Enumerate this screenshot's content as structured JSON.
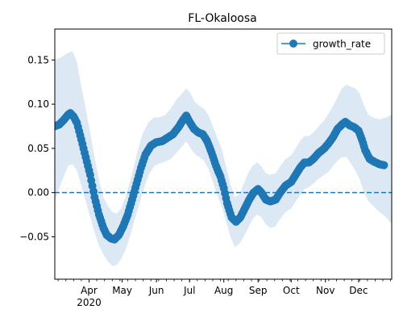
{
  "chart_data": {
    "type": "line",
    "title": "FL-Okaloosa",
    "xlabel": "",
    "ylabel": "",
    "x_range": [
      "2020-03-01",
      "2020-12-31"
    ],
    "ylim": [
      -0.098,
      0.185
    ],
    "yticks": [
      -0.05,
      0.0,
      0.05,
      0.1,
      0.15
    ],
    "ytick_labels": [
      "−0.05",
      "0.00",
      "0.05",
      "0.10",
      "0.15"
    ],
    "xticks": [
      {
        "date": "2020-04-01",
        "label": "Apr"
      },
      {
        "date": "2020-05-01",
        "label": "May"
      },
      {
        "date": "2020-06-01",
        "label": "Jun"
      },
      {
        "date": "2020-07-01",
        "label": "Jul"
      },
      {
        "date": "2020-08-01",
        "label": "Aug"
      },
      {
        "date": "2020-09-01",
        "label": "Sep"
      },
      {
        "date": "2020-10-01",
        "label": "Oct"
      },
      {
        "date": "2020-11-01",
        "label": "Nov"
      },
      {
        "date": "2020-12-01",
        "label": "Dec"
      }
    ],
    "year_label": "2020",
    "reference_line": {
      "y": 0.0,
      "style": "dashed"
    },
    "legend": {
      "position": "top-right",
      "entries": [
        "growth_rate"
      ]
    },
    "grid": false,
    "colors": {
      "line": "#1f77b4",
      "band": "#dce9f5"
    },
    "series": [
      {
        "name": "growth_rate",
        "points": [
          [
            "2020-03-01",
            0.075
          ],
          [
            "2020-03-05",
            0.077
          ],
          [
            "2020-03-09",
            0.082
          ],
          [
            "2020-03-13",
            0.088
          ],
          [
            "2020-03-15",
            0.09
          ],
          [
            "2020-03-18",
            0.086
          ],
          [
            "2020-03-21",
            0.079
          ],
          [
            "2020-03-25",
            0.06
          ],
          [
            "2020-03-29",
            0.04
          ],
          [
            "2020-04-02",
            0.02
          ],
          [
            "2020-04-06",
            -0.005
          ],
          [
            "2020-04-10",
            -0.025
          ],
          [
            "2020-04-14",
            -0.04
          ],
          [
            "2020-04-17",
            -0.048
          ],
          [
            "2020-04-21",
            -0.052
          ],
          [
            "2020-04-24",
            -0.053
          ],
          [
            "2020-04-28",
            -0.048
          ],
          [
            "2020-05-02",
            -0.038
          ],
          [
            "2020-05-06",
            -0.025
          ],
          [
            "2020-05-10",
            -0.008
          ],
          [
            "2020-05-14",
            0.01
          ],
          [
            "2020-05-18",
            0.028
          ],
          [
            "2020-05-22",
            0.043
          ],
          [
            "2020-05-27",
            0.053
          ],
          [
            "2020-06-01",
            0.057
          ],
          [
            "2020-06-06",
            0.058
          ],
          [
            "2020-06-11",
            0.062
          ],
          [
            "2020-06-16",
            0.066
          ],
          [
            "2020-06-21",
            0.074
          ],
          [
            "2020-06-25",
            0.082
          ],
          [
            "2020-06-28",
            0.087
          ],
          [
            "2020-07-01",
            0.08
          ],
          [
            "2020-07-05",
            0.072
          ],
          [
            "2020-07-09",
            0.068
          ],
          [
            "2020-07-13",
            0.066
          ],
          [
            "2020-07-17",
            0.058
          ],
          [
            "2020-07-21",
            0.045
          ],
          [
            "2020-07-25",
            0.03
          ],
          [
            "2020-07-29",
            0.018
          ],
          [
            "2020-08-01",
            0.005
          ],
          [
            "2020-08-04",
            -0.012
          ],
          [
            "2020-08-08",
            -0.028
          ],
          [
            "2020-08-12",
            -0.033
          ],
          [
            "2020-08-16",
            -0.028
          ],
          [
            "2020-08-20",
            -0.018
          ],
          [
            "2020-08-24",
            -0.008
          ],
          [
            "2020-08-28",
            0.0
          ],
          [
            "2020-09-01",
            0.004
          ],
          [
            "2020-09-04",
            0.0
          ],
          [
            "2020-09-08",
            -0.008
          ],
          [
            "2020-09-12",
            -0.01
          ],
          [
            "2020-09-17",
            -0.008
          ],
          [
            "2020-09-21",
            0.0
          ],
          [
            "2020-09-26",
            0.008
          ],
          [
            "2020-10-01",
            0.012
          ],
          [
            "2020-10-05",
            0.02
          ],
          [
            "2020-10-09",
            0.028
          ],
          [
            "2020-10-13",
            0.034
          ],
          [
            "2020-10-17",
            0.034
          ],
          [
            "2020-10-21",
            0.038
          ],
          [
            "2020-10-26",
            0.045
          ],
          [
            "2020-10-31",
            0.05
          ],
          [
            "2020-11-04",
            0.056
          ],
          [
            "2020-11-08",
            0.063
          ],
          [
            "2020-11-12",
            0.072
          ],
          [
            "2020-11-16",
            0.077
          ],
          [
            "2020-11-19",
            0.08
          ],
          [
            "2020-11-23",
            0.076
          ],
          [
            "2020-11-27",
            0.074
          ],
          [
            "2020-12-01",
            0.07
          ],
          [
            "2020-12-04",
            0.06
          ],
          [
            "2020-12-07",
            0.048
          ],
          [
            "2020-12-11",
            0.038
          ],
          [
            "2020-12-15",
            0.035
          ],
          [
            "2020-12-20",
            0.032
          ],
          [
            "2020-12-24",
            0.031
          ]
        ],
        "band_lower": [
          [
            "2020-03-01",
            -0.01
          ],
          [
            "2020-03-05",
            0.005
          ],
          [
            "2020-03-09",
            0.018
          ],
          [
            "2020-03-13",
            0.03
          ],
          [
            "2020-03-17",
            0.032
          ],
          [
            "2020-03-21",
            0.025
          ],
          [
            "2020-03-25",
            0.008
          ],
          [
            "2020-03-29",
            -0.01
          ],
          [
            "2020-04-02",
            -0.028
          ],
          [
            "2020-04-06",
            -0.045
          ],
          [
            "2020-04-10",
            -0.06
          ],
          [
            "2020-04-14",
            -0.07
          ],
          [
            "2020-04-18",
            -0.078
          ],
          [
            "2020-04-22",
            -0.083
          ],
          [
            "2020-04-26",
            -0.082
          ],
          [
            "2020-04-30",
            -0.075
          ],
          [
            "2020-05-04",
            -0.065
          ],
          [
            "2020-05-08",
            -0.05
          ],
          [
            "2020-05-12",
            -0.032
          ],
          [
            "2020-05-16",
            -0.015
          ],
          [
            "2020-05-20",
            0.002
          ],
          [
            "2020-05-25",
            0.02
          ],
          [
            "2020-05-30",
            0.03
          ],
          [
            "2020-06-04",
            0.033
          ],
          [
            "2020-06-09",
            0.035
          ],
          [
            "2020-06-14",
            0.038
          ],
          [
            "2020-06-19",
            0.045
          ],
          [
            "2020-06-24",
            0.052
          ],
          [
            "2020-06-28",
            0.058
          ],
          [
            "2020-07-02",
            0.05
          ],
          [
            "2020-07-06",
            0.043
          ],
          [
            "2020-07-10",
            0.04
          ],
          [
            "2020-07-14",
            0.036
          ],
          [
            "2020-07-18",
            0.027
          ],
          [
            "2020-07-22",
            0.012
          ],
          [
            "2020-07-26",
            -0.003
          ],
          [
            "2020-07-30",
            -0.015
          ],
          [
            "2020-08-03",
            -0.032
          ],
          [
            "2020-08-07",
            -0.05
          ],
          [
            "2020-08-11",
            -0.062
          ],
          [
            "2020-08-15",
            -0.058
          ],
          [
            "2020-08-19",
            -0.05
          ],
          [
            "2020-08-23",
            -0.04
          ],
          [
            "2020-08-27",
            -0.03
          ],
          [
            "2020-08-31",
            -0.025
          ],
          [
            "2020-09-04",
            -0.028
          ],
          [
            "2020-09-08",
            -0.036
          ],
          [
            "2020-09-12",
            -0.04
          ],
          [
            "2020-09-17",
            -0.038
          ],
          [
            "2020-09-21",
            -0.03
          ],
          [
            "2020-09-26",
            -0.022
          ],
          [
            "2020-10-01",
            -0.018
          ],
          [
            "2020-10-05",
            -0.01
          ],
          [
            "2020-10-09",
            -0.003
          ],
          [
            "2020-10-13",
            0.004
          ],
          [
            "2020-10-17",
            0.006
          ],
          [
            "2020-10-21",
            0.01
          ],
          [
            "2020-10-26",
            0.016
          ],
          [
            "2020-10-31",
            0.02
          ],
          [
            "2020-11-04",
            0.024
          ],
          [
            "2020-11-08",
            0.03
          ],
          [
            "2020-11-12",
            0.036
          ],
          [
            "2020-11-16",
            0.04
          ],
          [
            "2020-11-20",
            0.04
          ],
          [
            "2020-11-24",
            0.033
          ],
          [
            "2020-11-28",
            0.025
          ],
          [
            "2020-12-02",
            0.015
          ],
          [
            "2020-12-06",
            0.0
          ],
          [
            "2020-12-10",
            -0.01
          ],
          [
            "2020-12-14",
            -0.015
          ],
          [
            "2020-12-20",
            -0.022
          ],
          [
            "2020-12-26",
            -0.028
          ],
          [
            "2020-12-31",
            -0.036
          ]
        ],
        "band_upper": [
          [
            "2020-03-01",
            0.15
          ],
          [
            "2020-03-05",
            0.152
          ],
          [
            "2020-03-09",
            0.155
          ],
          [
            "2020-03-13",
            0.158
          ],
          [
            "2020-03-17",
            0.16
          ],
          [
            "2020-03-21",
            0.148
          ],
          [
            "2020-03-25",
            0.12
          ],
          [
            "2020-03-29",
            0.095
          ],
          [
            "2020-04-02",
            0.068
          ],
          [
            "2020-04-06",
            0.04
          ],
          [
            "2020-04-10",
            0.015
          ],
          [
            "2020-04-14",
            -0.005
          ],
          [
            "2020-04-18",
            -0.015
          ],
          [
            "2020-04-22",
            -0.022
          ],
          [
            "2020-04-26",
            -0.024
          ],
          [
            "2020-04-30",
            -0.018
          ],
          [
            "2020-05-04",
            -0.005
          ],
          [
            "2020-05-08",
            0.012
          ],
          [
            "2020-05-12",
            0.032
          ],
          [
            "2020-05-16",
            0.052
          ],
          [
            "2020-05-20",
            0.068
          ],
          [
            "2020-05-25",
            0.08
          ],
          [
            "2020-05-30",
            0.085
          ],
          [
            "2020-06-04",
            0.085
          ],
          [
            "2020-06-09",
            0.088
          ],
          [
            "2020-06-14",
            0.095
          ],
          [
            "2020-06-19",
            0.105
          ],
          [
            "2020-06-24",
            0.112
          ],
          [
            "2020-06-28",
            0.118
          ],
          [
            "2020-07-02",
            0.112
          ],
          [
            "2020-07-06",
            0.102
          ],
          [
            "2020-07-10",
            0.098
          ],
          [
            "2020-07-14",
            0.095
          ],
          [
            "2020-07-18",
            0.088
          ],
          [
            "2020-07-22",
            0.075
          ],
          [
            "2020-07-26",
            0.062
          ],
          [
            "2020-07-30",
            0.05
          ],
          [
            "2020-08-03",
            0.03
          ],
          [
            "2020-08-07",
            0.01
          ],
          [
            "2020-08-11",
            -0.005
          ],
          [
            "2020-08-15",
            -0.002
          ],
          [
            "2020-08-19",
            0.01
          ],
          [
            "2020-08-23",
            0.022
          ],
          [
            "2020-08-27",
            0.03
          ],
          [
            "2020-08-31",
            0.034
          ],
          [
            "2020-09-04",
            0.03
          ],
          [
            "2020-09-08",
            0.022
          ],
          [
            "2020-09-12",
            0.02
          ],
          [
            "2020-09-17",
            0.022
          ],
          [
            "2020-09-21",
            0.03
          ],
          [
            "2020-09-26",
            0.038
          ],
          [
            "2020-10-01",
            0.042
          ],
          [
            "2020-10-05",
            0.05
          ],
          [
            "2020-10-09",
            0.058
          ],
          [
            "2020-10-13",
            0.064
          ],
          [
            "2020-10-17",
            0.064
          ],
          [
            "2020-10-21",
            0.068
          ],
          [
            "2020-10-26",
            0.075
          ],
          [
            "2020-10-31",
            0.082
          ],
          [
            "2020-11-04",
            0.09
          ],
          [
            "2020-11-08",
            0.098
          ],
          [
            "2020-11-12",
            0.108
          ],
          [
            "2020-11-16",
            0.118
          ],
          [
            "2020-11-20",
            0.122
          ],
          [
            "2020-11-24",
            0.12
          ],
          [
            "2020-11-28",
            0.118
          ],
          [
            "2020-12-02",
            0.112
          ],
          [
            "2020-12-06",
            0.098
          ],
          [
            "2020-12-10",
            0.088
          ],
          [
            "2020-12-14",
            0.085
          ],
          [
            "2020-12-20",
            0.083
          ],
          [
            "2020-12-26",
            0.085
          ],
          [
            "2020-12-31",
            0.088
          ]
        ]
      }
    ]
  }
}
